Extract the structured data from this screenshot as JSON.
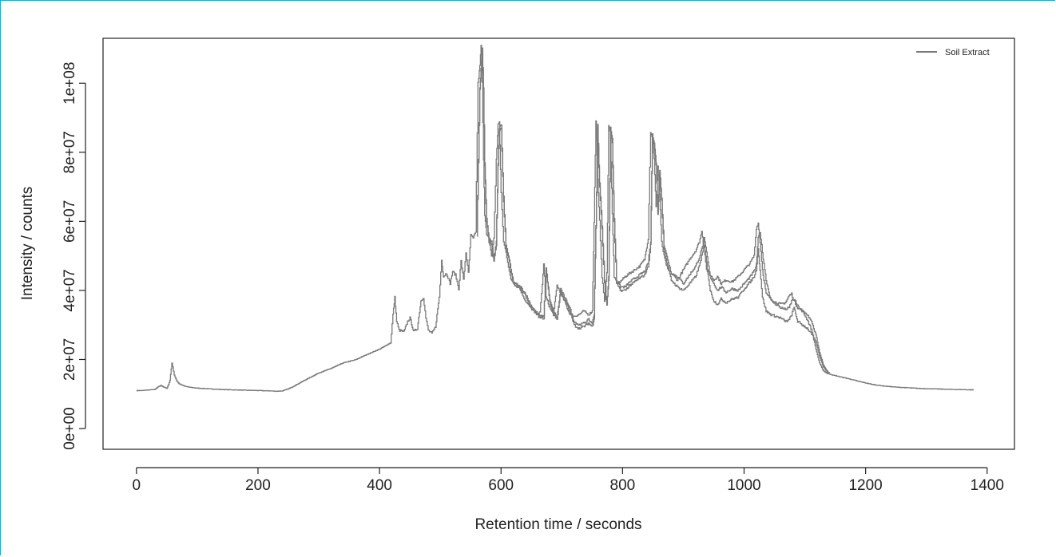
{
  "chart_data": {
    "type": "line",
    "title": "",
    "xlabel": "Retention time / seconds",
    "ylabel": "Intensity / counts",
    "xlim": [
      -55,
      1445
    ],
    "ylim": [
      -6000000,
      113000000
    ],
    "xticks": [
      0,
      200,
      400,
      600,
      800,
      1000,
      1200,
      1400
    ],
    "xtick_labels": [
      "0",
      "200",
      "400",
      "600",
      "800",
      "1000",
      "1200",
      "1400"
    ],
    "yticks": [
      0,
      20000000,
      40000000,
      60000000,
      80000000,
      100000000
    ],
    "ytick_labels": [
      "0e+00",
      "2e+07",
      "4e+07",
      "6e+07",
      "8e+07",
      "1e+08"
    ],
    "grid": false,
    "legend": {
      "placement": "top-right",
      "entries": [
        {
          "label": "Soil Extract",
          "color": "#7a7a7a"
        }
      ]
    },
    "series_color": "#7a7a7a",
    "series": [
      {
        "x": [
          0,
          10,
          20,
          30,
          35,
          40,
          45,
          50,
          55,
          58,
          62,
          66,
          70,
          80,
          90,
          100,
          120,
          140,
          160,
          180,
          200,
          220,
          230,
          240,
          250,
          260,
          280,
          300,
          320,
          340,
          360,
          380,
          400,
          410,
          418,
          422,
          425,
          428,
          432,
          440,
          446,
          450,
          456,
          462,
          468,
          472,
          476,
          480,
          486,
          492,
          498,
          502,
          505,
          510,
          516,
          520,
          525,
          530,
          534,
          538,
          542,
          546,
          550,
          554,
          558,
          562,
          565,
          567,
          569,
          571,
          573,
          576,
          580,
          584,
          588,
          592,
          595,
          597,
          600,
          604,
          608,
          612,
          616,
          620,
          626,
          632,
          640,
          648,
          656,
          664,
          670,
          674,
          680,
          686,
          692,
          698,
          704,
          712,
          720,
          728,
          736,
          744,
          750,
          753,
          756,
          759,
          762,
          766,
          770,
          774,
          777,
          780,
          783,
          786,
          790,
          796,
          804,
          812,
          820,
          828,
          836,
          842,
          846,
          849,
          852,
          855,
          858,
          861,
          864,
          868,
          874,
          880,
          890,
          900,
          910,
          920,
          926,
          930,
          934,
          938,
          944,
          950,
          956,
          962,
          970,
          980,
          990,
          1000,
          1010,
          1016,
          1020,
          1023,
          1026,
          1030,
          1036,
          1044,
          1052,
          1060,
          1068,
          1074,
          1078,
          1082,
          1088,
          1096,
          1104,
          1112,
          1118,
          1124,
          1130,
          1136,
          1140,
          1150,
          1170,
          1190,
          1210,
          1230,
          1250,
          1270,
          1290,
          1310,
          1330,
          1350,
          1378
        ],
        "y": [
          11000000,
          11000000,
          11200000,
          11300000,
          12000000,
          12500000,
          12000000,
          11600000,
          14000000,
          19000000,
          15500000,
          13800000,
          13000000,
          12200000,
          11900000,
          11700000,
          11500000,
          11300000,
          11200000,
          11100000,
          11000000,
          10900000,
          10800000,
          10900000,
          11500000,
          12400000,
          14300000,
          16100000,
          17400000,
          19000000,
          19900000,
          21500000,
          23000000,
          24000000,
          24800000,
          33000000,
          38000000,
          31000000,
          28500000,
          28000000,
          31000000,
          32000000,
          28000000,
          29000000,
          37000000,
          38000000,
          32000000,
          28500000,
          27500000,
          29500000,
          38000000,
          49000000,
          44000000,
          45000000,
          42000000,
          45500000,
          44500000,
          40500000,
          48500000,
          43000000,
          51000000,
          45000000,
          56000000,
          55000000,
          57000000,
          100000000,
          105000000,
          111000000,
          100000000,
          78000000,
          62000000,
          56000000,
          55000000,
          50000000,
          55000000,
          78000000,
          88000000,
          89000000,
          68000000,
          54000000,
          51000000,
          47000000,
          43000000,
          42500000,
          42000000,
          40000000,
          37000000,
          35000000,
          33500000,
          33500000,
          47500000,
          38000000,
          35000000,
          33000000,
          41500000,
          39000000,
          37000000,
          33500000,
          32500000,
          33000000,
          34000000,
          33000000,
          34000000,
          60000000,
          89000000,
          72000000,
          60000000,
          44000000,
          37000000,
          45000000,
          88000000,
          85000000,
          62000000,
          44000000,
          42000000,
          42500000,
          44000000,
          45000000,
          46000000,
          47000000,
          49000000,
          55000000,
          86000000,
          84000000,
          78000000,
          64000000,
          76000000,
          68000000,
          54000000,
          50000000,
          46000000,
          45000000,
          43000000,
          46000000,
          49000000,
          51500000,
          54000000,
          57000000,
          53000000,
          46000000,
          44500000,
          43000000,
          44000000,
          42000000,
          43000000,
          42500000,
          44000000,
          46000000,
          48000000,
          50000000,
          58000000,
          59500000,
          54000000,
          46000000,
          39000000,
          37500000,
          36500000,
          36000000,
          36500000,
          38500000,
          39000000,
          37000000,
          35000000,
          34000000,
          31500000,
          28000000,
          23000000,
          19000000,
          16800000,
          16000000,
          15800000,
          15300000,
          14500000,
          13600000,
          12800000,
          12300000,
          12000000,
          11800000,
          11600000,
          11500000,
          11400000,
          11300000,
          11200000
        ]
      },
      {
        "x": [
          560,
          565,
          567,
          569,
          571,
          573,
          576,
          580,
          584,
          588,
          592,
          595,
          597,
          600,
          604,
          608,
          612,
          616,
          620,
          626,
          632,
          640,
          648,
          656,
          664,
          670,
          674,
          680,
          686,
          692,
          698,
          704,
          712,
          720,
          728,
          736,
          744,
          750,
          753,
          756,
          759,
          762,
          766,
          770,
          774,
          777,
          780,
          783,
          786,
          790,
          796,
          804,
          812,
          820,
          828,
          836,
          842,
          846,
          849,
          852,
          855,
          858,
          861,
          864,
          868,
          874,
          880,
          890,
          900,
          910,
          920,
          926,
          930,
          934,
          938,
          944,
          950,
          956,
          962,
          970,
          980,
          990,
          1000,
          1010,
          1016,
          1020,
          1023,
          1026,
          1030,
          1036,
          1044,
          1052,
          1060,
          1068,
          1074,
          1078,
          1082,
          1088,
          1096,
          1104,
          1112,
          1118,
          1124,
          1130,
          1136,
          1140
        ],
        "y": [
          57000000,
          99000000,
          104000000,
          110000000,
          99000000,
          77000000,
          61000000,
          55000000,
          54000000,
          49000000,
          54000000,
          77000000,
          87000000,
          88000000,
          67000000,
          53000000,
          50000000,
          46000000,
          42500000,
          41500000,
          41000000,
          39000000,
          36000000,
          34000000,
          32500000,
          32500000,
          46500000,
          37000000,
          34000000,
          32000000,
          40500000,
          38000000,
          35500000,
          31000000,
          30000000,
          30500000,
          31500000,
          30500000,
          33000000,
          59000000,
          88000000,
          71000000,
          59000000,
          43000000,
          36000000,
          44000000,
          87000000,
          84000000,
          61000000,
          43000000,
          41000000,
          41000000,
          42500000,
          43500000,
          44500000,
          45500000,
          48000000,
          54000000,
          85000000,
          83000000,
          77000000,
          63000000,
          75000000,
          67000000,
          53000000,
          49000000,
          45000000,
          44000000,
          42000000,
          44500000,
          47000000,
          49500000,
          52000000,
          55000000,
          51000000,
          44000000,
          42000000,
          40000000,
          41000000,
          39500000,
          40500000,
          40000000,
          42000000,
          44000000,
          45500000,
          47500000,
          55000000,
          57000000,
          51000000,
          43000000,
          37000000,
          36000000,
          35000000,
          34500000,
          35000000,
          37000000,
          37500000,
          35500000,
          34000000,
          33000000,
          30500000,
          27000000,
          22000000,
          18500000,
          16700000,
          16000000
        ]
      },
      {
        "x": [
          560,
          565,
          567,
          569,
          571,
          573,
          576,
          580,
          584,
          588,
          592,
          595,
          597,
          600,
          604,
          608,
          612,
          616,
          620,
          626,
          632,
          640,
          648,
          656,
          664,
          670,
          674,
          680,
          686,
          692,
          698,
          704,
          712,
          720,
          728,
          736,
          744,
          750,
          753,
          756,
          759,
          762,
          766,
          770,
          774,
          777,
          780,
          783,
          786,
          790,
          796,
          804,
          812,
          820,
          828,
          836,
          842,
          846,
          849,
          852,
          855,
          858,
          861,
          864,
          868,
          874,
          880,
          890,
          900,
          910,
          920,
          926,
          930,
          934,
          938,
          944,
          950,
          956,
          962,
          970,
          980,
          990,
          1000,
          1010,
          1016,
          1020,
          1023,
          1026,
          1030,
          1036,
          1044,
          1052,
          1060,
          1068,
          1074,
          1078,
          1082,
          1088,
          1096,
          1104,
          1112,
          1118,
          1124,
          1130,
          1136,
          1140
        ],
        "y": [
          56000000,
          98000000,
          103000000,
          109000000,
          98000000,
          76000000,
          60000000,
          54000000,
          53000000,
          48500000,
          53000000,
          76000000,
          86000000,
          87000000,
          66000000,
          52000000,
          49500000,
          45500000,
          42000000,
          41000000,
          40500000,
          38500000,
          35500000,
          33500000,
          32000000,
          32000000,
          46000000,
          36500000,
          33500000,
          31500000,
          40000000,
          37500000,
          34500000,
          30000000,
          29000000,
          29500000,
          30500000,
          29500000,
          32000000,
          58000000,
          87000000,
          70000000,
          58000000,
          42000000,
          35500000,
          43000000,
          86000000,
          83000000,
          60000000,
          42000000,
          40000000,
          40000000,
          41500000,
          42500000,
          43500000,
          44500000,
          47000000,
          53000000,
          84000000,
          82000000,
          76000000,
          62000000,
          74000000,
          66000000,
          52000000,
          47000000,
          43000000,
          41000000,
          40000000,
          42000000,
          44000000,
          47000000,
          50000000,
          53000000,
          48000000,
          40000000,
          37000000,
          36000000,
          37500000,
          36500000,
          37500000,
          38000000,
          40500000,
          42500000,
          44000000,
          46000000,
          52000000,
          46000000,
          38000000,
          34000000,
          33000000,
          32500000,
          32000000,
          31000000,
          31500000,
          33000000,
          35000000,
          31000000,
          30000000,
          29000000,
          27000000,
          25000000,
          21000000,
          18000000,
          16500000,
          16000000
        ]
      }
    ]
  }
}
